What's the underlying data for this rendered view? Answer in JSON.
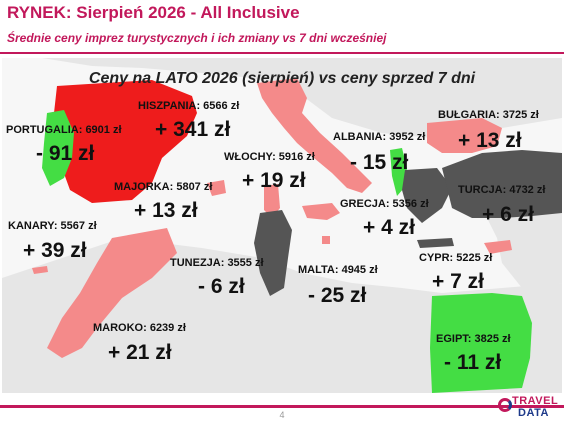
{
  "header": {
    "title": "RYNEK: Sierpień 2026 - All Inclusive",
    "subtitle": "Średnie ceny imprez turystycznych i ich zmiany vs 7 dni wcześniej"
  },
  "map_title": "Ceny na LATO 2026 (sierpień) vs ceny sprzed 7 dni",
  "colors": {
    "strong_increase": "#ee1c1c",
    "increase": "#f48a8a",
    "decrease": "#555555",
    "strong_decrease": "#44dd44",
    "background_land": "#e6e6e6",
    "accent": "#c2185b"
  },
  "destinations": [
    {
      "id": "portugalia",
      "label": "PORTUGALIA: 6901 zł",
      "change": "- 91 zł"
    },
    {
      "id": "hiszpania",
      "label": "HISZPANIA: 6566 zł",
      "change": "+ 341 zł"
    },
    {
      "id": "majorka",
      "label": "MAJORKA: 5807 zł",
      "change": "+ 13 zł"
    },
    {
      "id": "wlochy",
      "label": "WŁOCHY: 5916 zł",
      "change": "+ 19 zł"
    },
    {
      "id": "albania",
      "label": "ALBANIA: 3952 zł",
      "change": "- 15 zł"
    },
    {
      "id": "bulgaria",
      "label": "BUŁGARIA: 3725 zł",
      "change": "+ 13 zł"
    },
    {
      "id": "turcja",
      "label": "TURCJA: 4732 zł",
      "change": "+ 6 zł"
    },
    {
      "id": "grecja",
      "label": "GRECJA: 5356 zł",
      "change": "+ 4 zł"
    },
    {
      "id": "kanary",
      "label": "KANARY: 5567 zł",
      "change": "+ 39 zł"
    },
    {
      "id": "tunezja",
      "label": "TUNEZJA: 3555 zł",
      "change": "- 6 zł"
    },
    {
      "id": "malta",
      "label": "MALTA: 4945 zł",
      "change": "- 25 zł"
    },
    {
      "id": "cypr",
      "label": "CYPR: 5225 zł",
      "change": "+ 7 zł"
    },
    {
      "id": "maroko",
      "label": "MAROKO: 6239 zł",
      "change": "+ 21 zł"
    },
    {
      "id": "egipt",
      "label": "EGIPT: 3825 zł",
      "change": "- 11 zł"
    }
  ],
  "footer": {
    "page_number": "4",
    "logo_top": "TRAVEL",
    "logo_bottom": "DATA"
  }
}
